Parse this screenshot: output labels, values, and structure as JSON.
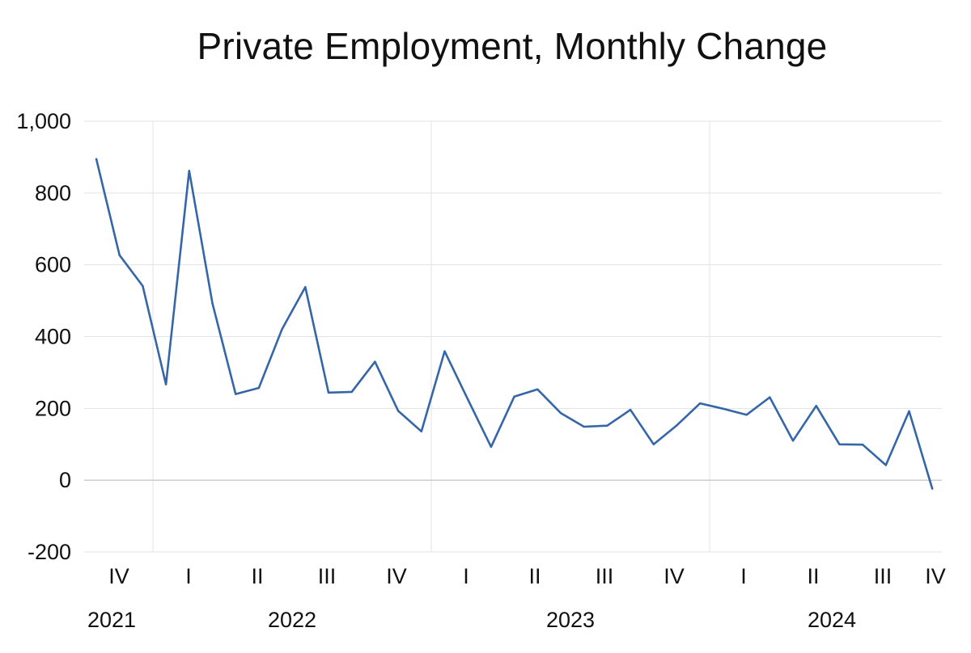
{
  "chart_data": {
    "type": "line",
    "title": "Private Employment, Monthly Change",
    "ylim": [
      -200,
      1000
    ],
    "y_ticks": [
      -200,
      0,
      200,
      400,
      600,
      800,
      1000
    ],
    "y_tick_labels": [
      "-200",
      "0",
      "200",
      "400",
      "600",
      "800",
      "1,000"
    ],
    "grid": "horizontal and vertical year separators",
    "quarter_labels": [
      "IV",
      "I",
      "II",
      "III",
      "IV",
      "I",
      "II",
      "III",
      "IV",
      "I",
      "II",
      "III",
      "IV"
    ],
    "year_labels": [
      "2021",
      "2022",
      "2023",
      "2024"
    ],
    "series": [
      {
        "color": "#3566a8",
        "values": [
          895,
          627,
          541,
          267,
          862,
          493,
          240,
          257,
          421,
          538,
          244,
          246,
          330,
          193,
          136,
          359,
          225,
          93,
          233,
          253,
          187,
          149,
          152,
          196,
          100,
          153,
          214,
          199,
          182,
          231,
          110,
          207,
          100,
          99,
          42,
          192,
          -24
        ]
      }
    ]
  }
}
